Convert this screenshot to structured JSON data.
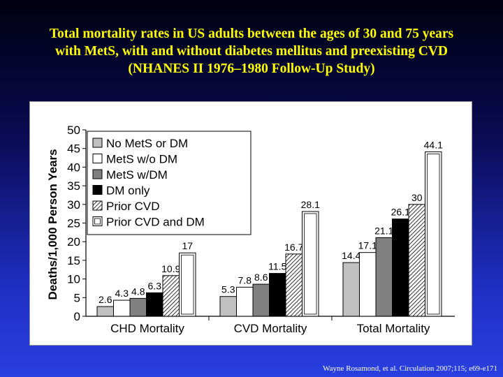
{
  "slide": {
    "title_lines": [
      "Total mortality rates in US adults between the ages of 30 and 75 years",
      "with MetS, with and without diabetes mellitus and preexisting CVD",
      "(NHANES II 1976–1980 Follow-Up Study)"
    ],
    "citation": "Wayne Rosamond, et al. Circulation  2007;115; e69-e171"
  },
  "chart_data": {
    "type": "bar",
    "title": "",
    "xlabel": "",
    "ylabel": "Deaths/1,000 Person Years",
    "ylim": [
      0,
      50
    ],
    "yticks": [
      "0",
      "5",
      "10",
      "15",
      "20",
      "25",
      "30",
      "35",
      "40",
      "45",
      "50"
    ],
    "categories": [
      "CHD Mortality",
      "CVD Mortality",
      "Total Mortality"
    ],
    "legend_position": "top-left",
    "series": [
      {
        "name": "No MetS or DM",
        "values": [
          2.6,
          5.3,
          14.4
        ],
        "labels": [
          "2.6",
          "5.3",
          "14.4"
        ],
        "color": "#c0c0c0",
        "pattern": "solid"
      },
      {
        "name": "MetS w/o DM",
        "values": [
          4.3,
          7.8,
          17.1
        ],
        "labels": [
          "4.3",
          "7.8",
          "17.1"
        ],
        "color": "#ffffff",
        "pattern": "solid"
      },
      {
        "name": "MetS w/DM",
        "values": [
          4.8,
          8.6,
          21.1
        ],
        "labels": [
          "4.8",
          "8.6",
          "21.1"
        ],
        "color": "#808080",
        "pattern": "solid"
      },
      {
        "name": "DM only",
        "values": [
          6.3,
          11.5,
          26.1
        ],
        "labels": [
          "6.3",
          "11.5",
          "26.1"
        ],
        "color": "#000000",
        "pattern": "solid"
      },
      {
        "name": "Prior CVD",
        "values": [
          10.9,
          16.7,
          30
        ],
        "labels": [
          "10.9",
          "16.7",
          "30"
        ],
        "color": "#ffffff",
        "pattern": "hatched"
      },
      {
        "name": "Prior CVD and DM",
        "values": [
          17,
          28.1,
          44.1
        ],
        "labels": [
          "17",
          "28.1",
          "44.1"
        ],
        "color": "#ffffff",
        "pattern": "hollow"
      }
    ]
  }
}
